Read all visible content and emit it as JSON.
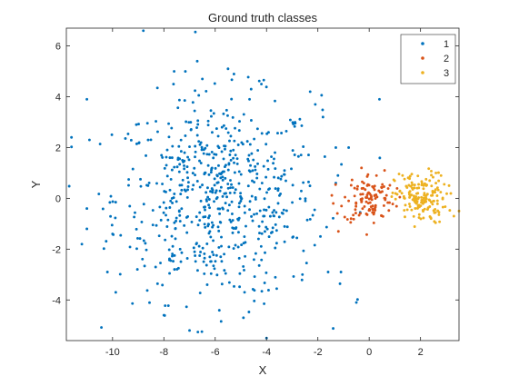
{
  "chart_data": {
    "type": "scatter",
    "title": "Ground truth classes",
    "xlabel": "X",
    "ylabel": "Y",
    "xlim": [
      -11.8,
      3.5
    ],
    "ylim": [
      -5.6,
      6.7
    ],
    "xticks": [
      -10,
      -8,
      -6,
      -4,
      -2,
      0,
      2
    ],
    "yticks": [
      -4,
      -2,
      0,
      2,
      4,
      6
    ],
    "xtick_labels": [
      "-10",
      "-8",
      "-6",
      "-4",
      "-2",
      "0",
      "2"
    ],
    "ytick_labels": [
      "-4",
      "-2",
      "0",
      "2",
      "4",
      "6"
    ],
    "legend_position": "top-right",
    "grid": false,
    "series": [
      {
        "name": "1",
        "color": "#0072BD",
        "cluster": {
          "count": 640,
          "center_x": -5.9,
          "center_y": 0.0,
          "sd_x": 2.0,
          "sd_y": 2.0
        },
        "points": [
          {
            "x": -8.8,
            "y": 6.6
          },
          {
            "x": -11.6,
            "y": 2.4
          },
          {
            "x": -11.0,
            "y": 3.9
          },
          {
            "x": -10.9,
            "y": 2.3
          },
          {
            "x": -11.0,
            "y": -1.2
          },
          {
            "x": -11.0,
            "y": -0.4
          },
          {
            "x": -10.2,
            "y": -2.9
          },
          {
            "x": -10.0,
            "y": -1.4
          },
          {
            "x": -8.0,
            "y": -4.6
          },
          {
            "x": -7.0,
            "y": -5.2
          },
          {
            "x": -4.0,
            "y": -5.5
          },
          {
            "x": -4.9,
            "y": -4.7
          },
          {
            "x": -2.3,
            "y": 4.2
          },
          {
            "x": -2.1,
            "y": 3.7
          },
          {
            "x": -1.8,
            "y": 3.2
          },
          {
            "x": -1.3,
            "y": 2.0
          },
          {
            "x": -1.3,
            "y": 0.6
          },
          {
            "x": -1.1,
            "y": -2.9
          },
          {
            "x": -1.6,
            "y": -2.9
          },
          {
            "x": -0.8,
            "y": 2.0
          },
          {
            "x": 0.4,
            "y": 3.9
          },
          {
            "x": -0.5,
            "y": -4.1
          },
          {
            "x": -4.2,
            "y": 4.5
          },
          {
            "x": -4.6,
            "y": 4.3
          },
          {
            "x": -6.5,
            "y": 4.7
          },
          {
            "x": -6.7,
            "y": 5.4
          },
          {
            "x": -5.5,
            "y": 5.1
          },
          {
            "x": -7.6,
            "y": 5.0
          },
          {
            "x": -1.9,
            "y": -1.5
          },
          {
            "x": -2.6,
            "y": -3.0
          }
        ]
      },
      {
        "name": "2",
        "color": "#D95319",
        "cluster": {
          "count": 110,
          "center_x": 0.0,
          "center_y": 0.0,
          "sd_x": 0.5,
          "sd_y": 0.5
        },
        "points": [
          {
            "x": -1.2,
            "y": -1.3
          },
          {
            "x": -0.8,
            "y": -0.1
          },
          {
            "x": -1.4,
            "y": -0.2
          },
          {
            "x": 0.6,
            "y": 1.1
          },
          {
            "x": -0.3,
            "y": 1.2
          }
        ]
      },
      {
        "name": "3",
        "color": "#EDB120",
        "cluster": {
          "count": 160,
          "center_x": 2.0,
          "center_y": 0.0,
          "sd_x": 0.5,
          "sd_y": 0.5
        },
        "points": [
          {
            "x": 3.3,
            "y": -0.7
          },
          {
            "x": 3.5,
            "y": -0.5
          },
          {
            "x": 2.6,
            "y": 1.0
          },
          {
            "x": 1.3,
            "y": 0.9
          },
          {
            "x": 2.6,
            "y": 0.6
          }
        ]
      }
    ]
  }
}
